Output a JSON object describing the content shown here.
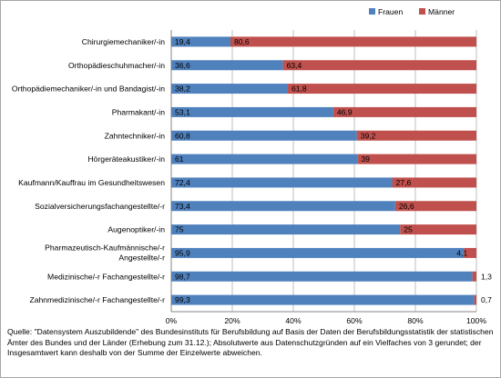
{
  "chart_data": {
    "type": "bar",
    "orientation": "horizontal",
    "stacked": "percent",
    "categories": [
      "Chirurgiemechaniker/-in",
      "Orthopädieschuhmacher/-in",
      "Orthopädiemechaniker/-in und Bandagist/-in",
      "Pharmakant/-in",
      "Zahntechniker/-in",
      "Hörgeräteakustiker/-in",
      "Kaufmann/Kauffrau im Gesundheitswesen",
      "Sozialversicherungsfachangestellte/-r",
      "Augenoptiker/-in",
      "Pharmazeutisch-Kaufmännische/-r Angestellte/-r",
      "Medizinische/-r Fachangestellte/-r",
      "Zahnmedizinische/-r Fachangestellte/-r"
    ],
    "series": [
      {
        "name": "Frauen",
        "color": "#4f81bd",
        "values": [
          19.4,
          36.6,
          38.2,
          53.1,
          60.8,
          61,
          72.4,
          73.4,
          75,
          95.9,
          98.7,
          99.3
        ],
        "labels": [
          "19,4",
          "36,6",
          "38,2",
          "53,1",
          "60,8",
          "61",
          "72,4",
          "73,4",
          "75",
          "95,9",
          "98,7",
          "99,3"
        ]
      },
      {
        "name": "Männer",
        "color": "#c0504d",
        "values": [
          80.6,
          63.4,
          61.8,
          46.9,
          39.2,
          39,
          27.6,
          26.6,
          25,
          4.1,
          1.3,
          0.7
        ],
        "labels": [
          "80,6",
          "63,4",
          "61,8",
          "46,9",
          "39,2",
          "39",
          "27,6",
          "26,6",
          "25",
          "4,1",
          "1,3",
          "0,7"
        ]
      }
    ],
    "x_ticks": [
      "0%",
      "20%",
      "40%",
      "60%",
      "80%",
      "100%"
    ],
    "xlim": [
      0,
      100
    ],
    "grid": true,
    "legend_position": "top-right"
  },
  "source_note": "Quelle: \"Datensystem Auszubildende\" des Bundesinstituts für Berufsbildung auf Basis der Daten der Berufsbildungsstatistik der statistischen Ämter des Bundes und der Länder (Erhebung zum 31.12.); Absolutwerte aus Datenschutzgründen auf ein Vielfaches von 3 gerundet; der Insgesamtwert kann deshalb von der Summe der Einzelwerte abweichen."
}
